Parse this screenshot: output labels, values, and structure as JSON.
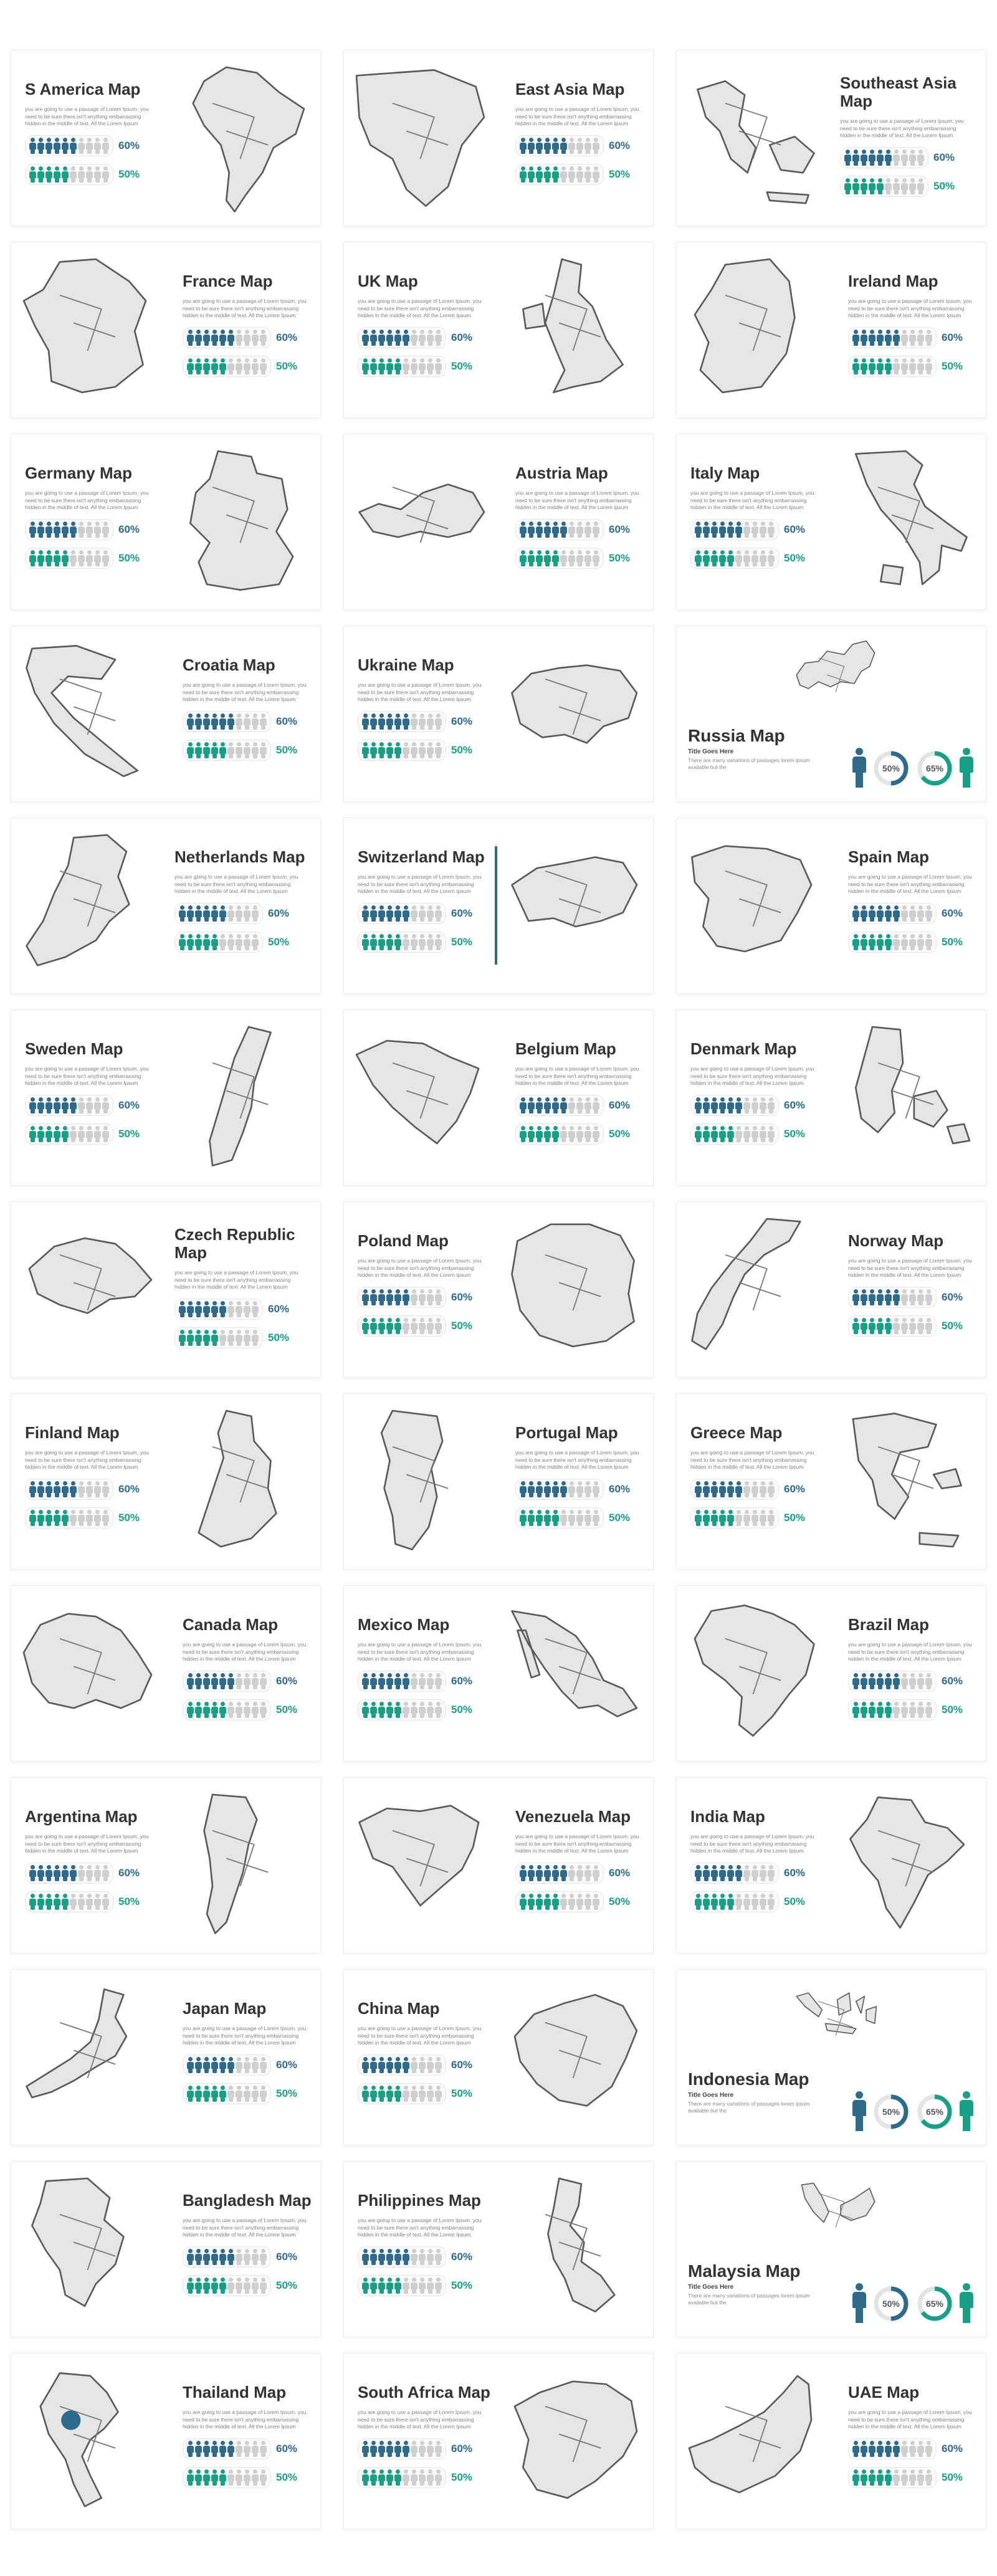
{
  "colors": {
    "blue": "#2e6a8c",
    "teal": "#17a085",
    "gray": "#cfcfcf"
  },
  "description": "you are going to use a passage of Lorem Ipsum, you need to be sure there isn't anything embarrassing hidden in the middle of text. All the Lorem Ipsum",
  "stats": [
    {
      "value": "60%",
      "filled": 6,
      "total": 10
    },
    {
      "value": "50%",
      "filled": 5,
      "total": 10
    }
  ],
  "russia_style": {
    "subtitle": "Title Goes Here",
    "desc": "There are many variations of passages lorem ipsum available but the",
    "donut1": "50%",
    "donut2": "65%"
  },
  "cards": [
    {
      "title": "S America Map",
      "variant": "a",
      "map": "samerica"
    },
    {
      "title": "East Asia Map",
      "variant": "b",
      "map": "eastasia"
    },
    {
      "title": "Southeast Asia Map",
      "variant": "b",
      "map": "seasia"
    },
    {
      "title": "France Map",
      "variant": "b2",
      "map": "france"
    },
    {
      "title": "UK Map",
      "variant": "a2",
      "map": "uk"
    },
    {
      "title": "Ireland Map",
      "variant": "b2",
      "map": "ireland"
    },
    {
      "title": "Germany Map",
      "variant": "a",
      "map": "germany"
    },
    {
      "title": "Austria Map",
      "variant": "b",
      "map": "austria"
    },
    {
      "title": "Italy Map",
      "variant": "a",
      "map": "italy"
    },
    {
      "title": "Croatia Map",
      "variant": "b2",
      "map": "croatia"
    },
    {
      "title": "Ukraine Map",
      "variant": "a2",
      "map": "ukraine"
    },
    {
      "title": "Russia Map",
      "variant": "r",
      "map": "russia"
    },
    {
      "title": "Netherlands Map",
      "variant": "b2",
      "map": "netherlands"
    },
    {
      "title": "Switzerland Map",
      "variant": "a2",
      "map": "switzerland",
      "line": true
    },
    {
      "title": "Spain Map",
      "variant": "b2",
      "map": "spain"
    },
    {
      "title": "Sweden Map",
      "variant": "a",
      "map": "sweden"
    },
    {
      "title": "Belgium Map",
      "variant": "b",
      "map": "belgium"
    },
    {
      "title": "Denmark Map",
      "variant": "a",
      "map": "denmark"
    },
    {
      "title": "Czech Republic Map",
      "variant": "b2",
      "map": "czech"
    },
    {
      "title": "Poland Map",
      "variant": "a2",
      "map": "poland"
    },
    {
      "title": "Norway Map",
      "variant": "b2",
      "map": "norway"
    },
    {
      "title": "Finland Map",
      "variant": "a",
      "map": "finland"
    },
    {
      "title": "Portugal Map",
      "variant": "b",
      "map": "portugal"
    },
    {
      "title": "Greece Map",
      "variant": "a",
      "map": "greece"
    },
    {
      "title": "Canada Map",
      "variant": "b2",
      "map": "canada"
    },
    {
      "title": "Mexico Map",
      "variant": "a2",
      "map": "mexico"
    },
    {
      "title": "Brazil Map",
      "variant": "b2",
      "map": "brazil"
    },
    {
      "title": "Argentina Map",
      "variant": "a",
      "map": "argentina"
    },
    {
      "title": "Venezuela Map",
      "variant": "b",
      "map": "venezuela"
    },
    {
      "title": "India Map",
      "variant": "a",
      "map": "india"
    },
    {
      "title": "Japan Map",
      "variant": "b2",
      "map": "japan"
    },
    {
      "title": "China Map",
      "variant": "a2",
      "map": "china"
    },
    {
      "title": "Indonesia Map",
      "variant": "r",
      "map": "indonesia"
    },
    {
      "title": "Bangladesh Map",
      "variant": "b2",
      "map": "bangladesh"
    },
    {
      "title": "Philippines Map",
      "variant": "a2",
      "map": "philippines"
    },
    {
      "title": "Malaysia Map",
      "variant": "r",
      "map": "malaysia"
    },
    {
      "title": "Thailand Map",
      "variant": "b2",
      "map": "thailand"
    },
    {
      "title": "South Africa Map",
      "variant": "a2",
      "map": "southafrica"
    },
    {
      "title": "UAE Map",
      "variant": "b2",
      "map": "uae"
    }
  ]
}
